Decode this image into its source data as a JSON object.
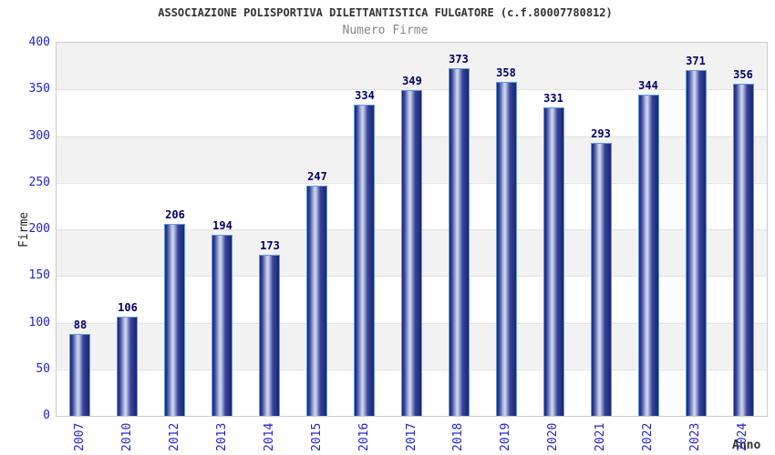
{
  "chart_data": {
    "type": "bar",
    "title": "ASSOCIAZIONE POLISPORTIVA DILETTANTISTICA FULGATORE (c.f.80007780812)",
    "subtitle": "Numero Firme",
    "xlabel": "Anno",
    "ylabel": "Firme",
    "categories": [
      "2007",
      "2010",
      "2012",
      "2013",
      "2014",
      "2015",
      "2016",
      "2017",
      "2018",
      "2019",
      "2020",
      "2021",
      "2022",
      "2023",
      "2024"
    ],
    "values": [
      88,
      106,
      206,
      194,
      173,
      247,
      334,
      349,
      373,
      358,
      331,
      293,
      344,
      371,
      356
    ],
    "ylim": [
      0,
      400
    ],
    "ytick_step": 50,
    "grid": true,
    "legend": "none",
    "bands_alternating": true,
    "colors": {
      "bar_edge": "#1a2572",
      "bar_mid": "#37459a",
      "bar_highlight": "#c9d1ec",
      "bar_border": "#5f9bdc",
      "tick_label": "#2323cd",
      "value_label": "#000066",
      "title": "#333333",
      "subtitle": "#868686",
      "plot_band": "#f2f2f2",
      "gridline": "#e2e2e2",
      "plot_border": "#cccccc"
    }
  }
}
